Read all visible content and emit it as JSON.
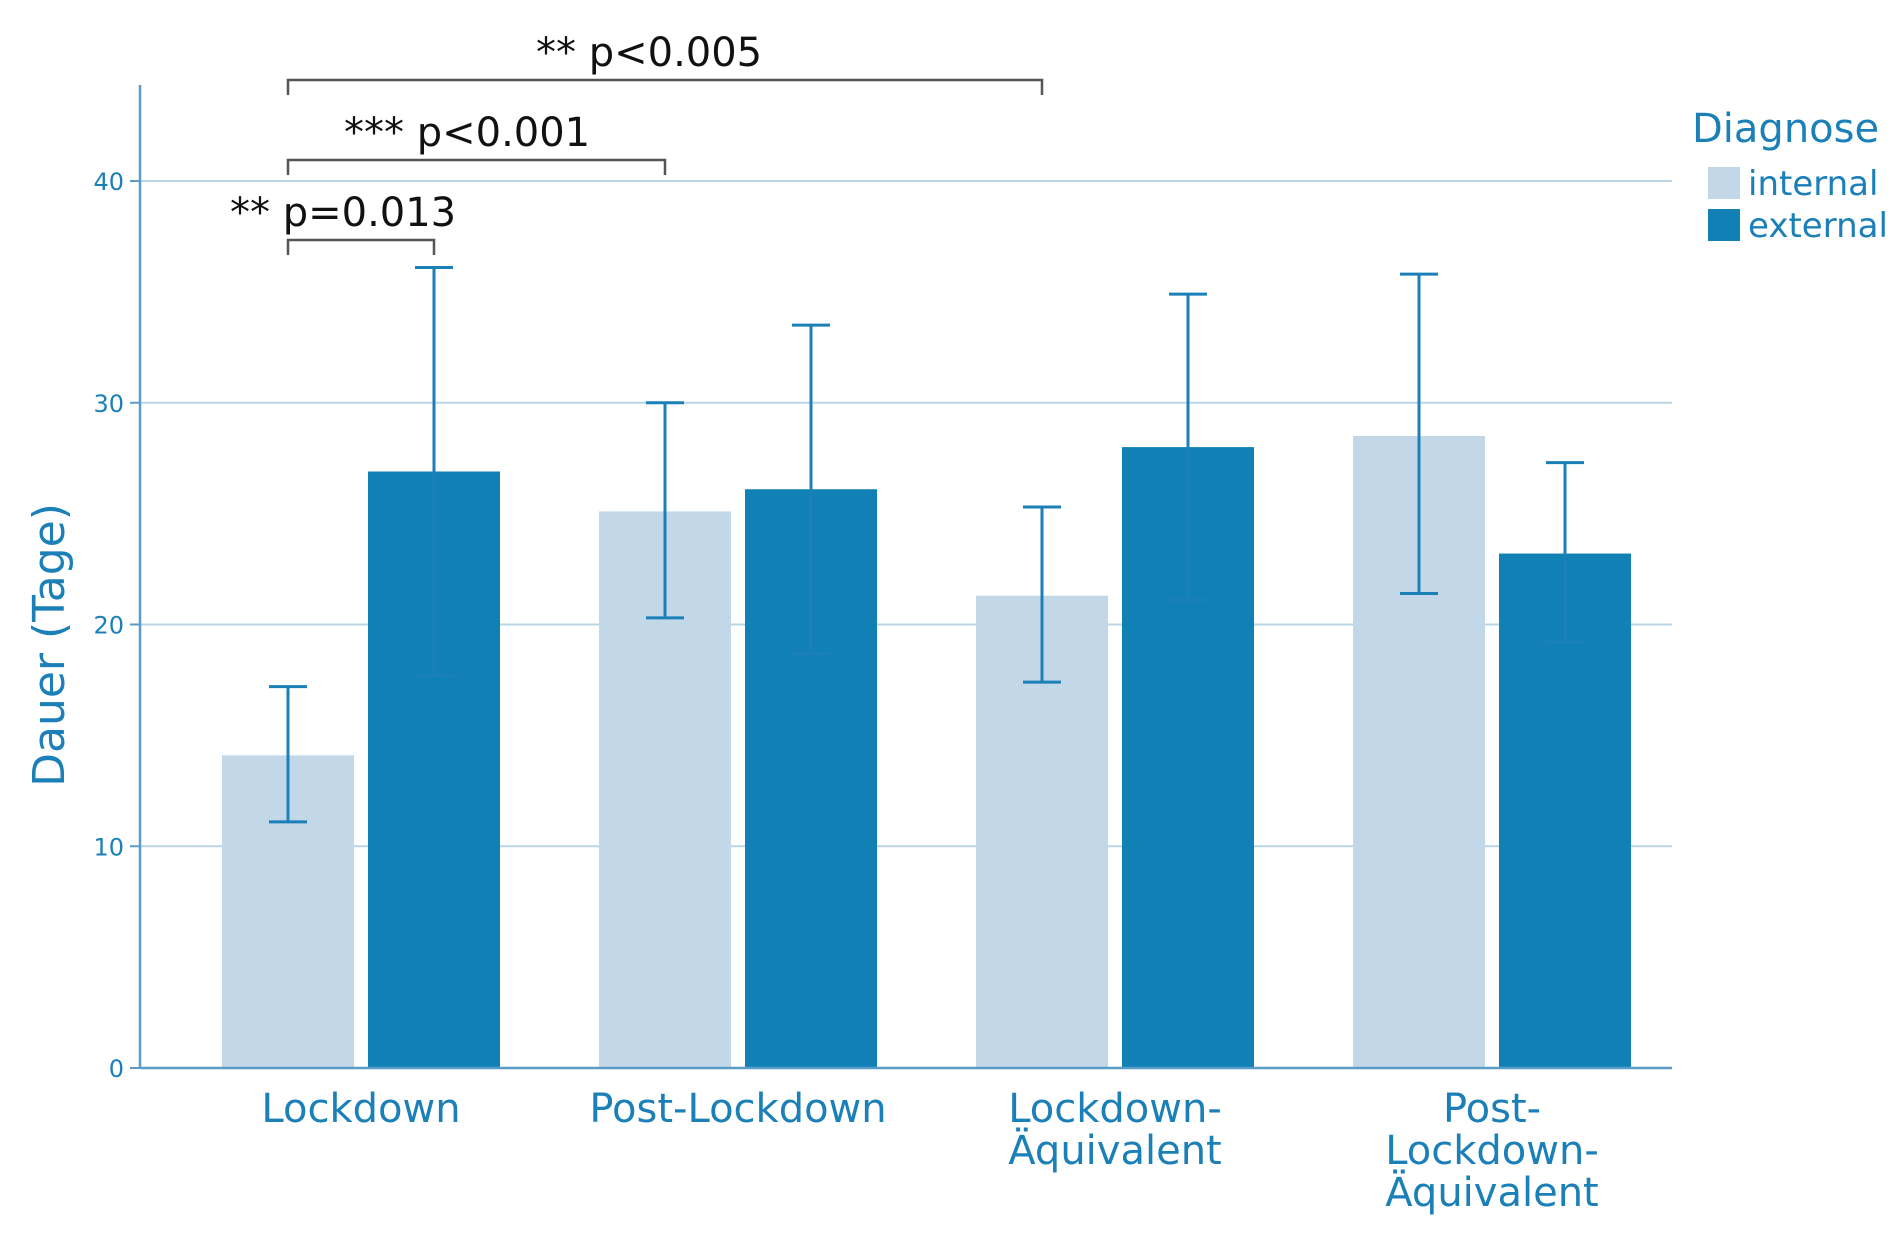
{
  "chart_data": {
    "type": "bar",
    "ylabel": "Dauer (Tage)",
    "xlabel": "",
    "ylim": [
      0,
      44
    ],
    "yticks": [
      0,
      10,
      20,
      30,
      40
    ],
    "categories": [
      [
        "Lockdown"
      ],
      [
        "Post-Lockdown"
      ],
      [
        "Lockdown-",
        "Äquivalent"
      ],
      [
        "Post-",
        "Lockdown-",
        "Äquivalent"
      ]
    ],
    "legend": {
      "title": "Diagnose",
      "position": "top-right"
    },
    "series": [
      {
        "name": "internal",
        "color": "#c2d8e8",
        "values": [
          14.1,
          25.1,
          21.3,
          28.5
        ],
        "error_low": [
          11.1,
          20.3,
          17.4,
          21.4
        ],
        "error_high": [
          17.2,
          30.0,
          25.3,
          35.8
        ]
      },
      {
        "name": "external",
        "color": "#1180b5",
        "values": [
          26.9,
          26.1,
          28.0,
          23.2
        ],
        "error_low": [
          17.7,
          18.7,
          21.1,
          19.2
        ],
        "error_high": [
          36.1,
          33.5,
          34.9,
          27.3
        ]
      }
    ],
    "annotations": [
      {
        "label": "** p=0.013",
        "from": [
          0,
          0
        ],
        "to": [
          0,
          1
        ],
        "level": 0
      },
      {
        "label": "*** p<0.001",
        "from": [
          0,
          0
        ],
        "to": [
          1,
          0
        ],
        "level": 1
      },
      {
        "label": "** p<0.005",
        "from": [
          0,
          0
        ],
        "to": [
          2,
          0
        ],
        "level": 2
      }
    ],
    "colors": {
      "axis": "#5a9cc6",
      "grid": "#b9d6e6",
      "text": "#1b7fb8",
      "bracket": "#555555",
      "errorbar": "#1b7fb8"
    }
  }
}
